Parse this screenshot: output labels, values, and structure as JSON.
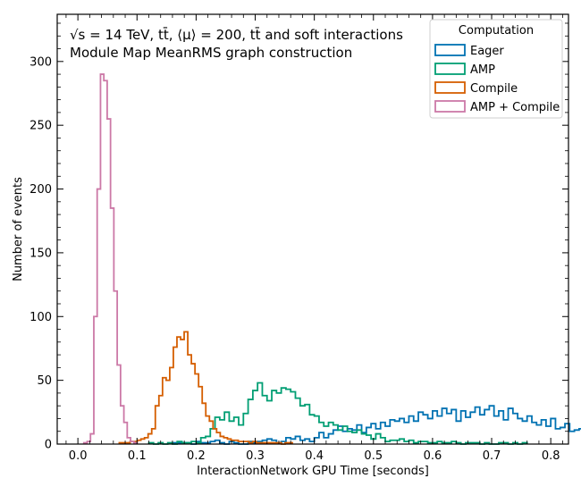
{
  "chart_data": {
    "type": "histogram",
    "annotation_lines": [
      "√s = 14 TeV, tt̄, ⟨μ⟩ = 200, tt̄ and soft interactions",
      "Module Map MeanRMS graph construction"
    ],
    "xlabel": "InteractionNetwork GPU Time [seconds]",
    "ylabel": "Number of events",
    "xlim": [
      -0.035,
      0.83
    ],
    "ylim": [
      0,
      337
    ],
    "xticks": [
      0.0,
      0.1,
      0.2,
      0.3,
      0.4,
      0.5,
      0.6,
      0.7,
      0.8
    ],
    "xtick_labels": [
      "0.0",
      "0.1",
      "0.2",
      "0.3",
      "0.4",
      "0.5",
      "0.6",
      "0.7",
      "0.8"
    ],
    "yticks": [
      0,
      50,
      100,
      150,
      200,
      250,
      300
    ],
    "ytick_labels": [
      "0",
      "50",
      "100",
      "150",
      "200",
      "250",
      "300"
    ],
    "grid": false,
    "legend": {
      "title": "Computation",
      "placement": "top-right"
    },
    "series": [
      {
        "name": "Eager",
        "color": "#0072b2",
        "bin_start": 0.16,
        "bin_width": 0.008,
        "counts": [
          1,
          1,
          1,
          1,
          0,
          2,
          1,
          1,
          2,
          3,
          1,
          0,
          2,
          1,
          0,
          0,
          2,
          1,
          2,
          3,
          4,
          3,
          1,
          2,
          5,
          4,
          6,
          3,
          4,
          2,
          5,
          9,
          5,
          8,
          11,
          14,
          10,
          12,
          11,
          15,
          9,
          13,
          16,
          12,
          17,
          14,
          19,
          18,
          20,
          17,
          22,
          18,
          25,
          23,
          20,
          26,
          22,
          28,
          24,
          27,
          18,
          26,
          21,
          25,
          29,
          23,
          27,
          30,
          22,
          26,
          19,
          28,
          24,
          20,
          18,
          22,
          17,
          15,
          19,
          14,
          20,
          12,
          13,
          16,
          10,
          11,
          12,
          9,
          10,
          8,
          7,
          11,
          6,
          5,
          4,
          8,
          3,
          6,
          2,
          3,
          4,
          2,
          5,
          3,
          4,
          2,
          1,
          3,
          2,
          1,
          2,
          1,
          1,
          1,
          1,
          0,
          3,
          2,
          1
        ]
      },
      {
        "name": "AMP",
        "color": "#009e73",
        "bin_start": 0.12,
        "bin_width": 0.008,
        "counts": [
          1,
          0,
          1,
          0,
          1,
          0,
          2,
          1,
          1,
          2,
          1,
          5,
          6,
          12,
          21,
          19,
          25,
          18,
          21,
          15,
          24,
          35,
          42,
          48,
          38,
          34,
          42,
          40,
          44,
          43,
          41,
          36,
          30,
          31,
          23,
          22,
          17,
          14,
          17,
          15,
          11,
          14,
          10,
          9,
          11,
          8,
          7,
          4,
          8,
          5,
          2,
          3,
          3,
          4,
          2,
          3,
          1,
          2,
          2,
          1,
          1,
          2,
          1,
          1,
          2,
          1,
          0,
          1,
          1,
          1,
          0,
          1,
          0,
          0,
          1,
          1,
          0,
          1,
          0,
          1
        ]
      },
      {
        "name": "Compile",
        "color": "#d55e00",
        "bin_start": 0.07,
        "bin_width": 0.0061,
        "counts": [
          1,
          1,
          1,
          2,
          2,
          3,
          4,
          5,
          8,
          12,
          30,
          38,
          52,
          50,
          60,
          76,
          84,
          82,
          88,
          70,
          63,
          55,
          45,
          32,
          22,
          18,
          12,
          9,
          6,
          5,
          4,
          3,
          3,
          2,
          2,
          2,
          1,
          2,
          1,
          1,
          1,
          1,
          1,
          1,
          1,
          0,
          1,
          1
        ]
      },
      {
        "name": "AMP + Compile",
        "color": "#cc79a7",
        "bin_start": 0.01,
        "bin_width": 0.00565,
        "counts": [
          1,
          2,
          8,
          100,
          200,
          290,
          285,
          255,
          185,
          120,
          62,
          30,
          17,
          5,
          2,
          1
        ]
      }
    ]
  }
}
